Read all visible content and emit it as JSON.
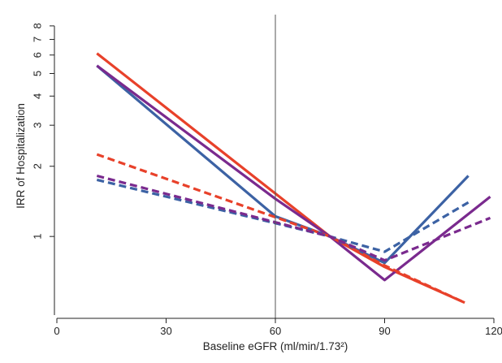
{
  "chart_data": {
    "type": "line",
    "title": "",
    "xlabel": "Baseline eGFR (ml/min/1.73²)",
    "ylabel": "IRR of Hospitalization",
    "xlim": [
      0,
      120
    ],
    "ylim": [
      0.46,
      8.8
    ],
    "y_scale": "log",
    "x_ticks": [
      0,
      30,
      60,
      90,
      120
    ],
    "x_tick_labels": [
      "0",
      "30",
      "60",
      "90",
      "120"
    ],
    "y_ticks": [
      1,
      2,
      3,
      4,
      5,
      6,
      7,
      8
    ],
    "y_tick_labels": [
      "1",
      "2",
      "3",
      "4",
      "5",
      "6",
      "7",
      "8"
    ],
    "reference_line_x": 60,
    "grid": false,
    "legend": "none",
    "series": [
      {
        "color": "#e8412a",
        "dash": "solid",
        "x": [
          11,
          75,
          90,
          112
        ],
        "y": [
          6.1,
          1.0,
          0.74,
          0.52
        ]
      },
      {
        "color": "#3c62a4",
        "dash": "solid",
        "x": [
          11,
          60,
          75,
          90,
          113
        ],
        "y": [
          5.4,
          1.22,
          1.0,
          0.77,
          1.82
        ]
      },
      {
        "color": "#7a2a8e",
        "dash": "solid",
        "x": [
          11,
          60,
          75,
          90,
          119
        ],
        "y": [
          5.4,
          1.45,
          1.0,
          0.65,
          1.48
        ]
      },
      {
        "color": "#e8412a",
        "dash": "dashed",
        "x": [
          11,
          75,
          90,
          112
        ],
        "y": [
          2.25,
          1.0,
          0.75,
          0.52
        ]
      },
      {
        "color": "#3c62a4",
        "dash": "dashed",
        "x": [
          11,
          75,
          90,
          113
        ],
        "y": [
          1.75,
          1.0,
          0.86,
          1.4
        ]
      },
      {
        "color": "#7a2a8e",
        "dash": "dashed",
        "x": [
          11,
          75,
          90,
          119
        ],
        "y": [
          1.82,
          1.0,
          0.79,
          1.2
        ]
      }
    ]
  }
}
